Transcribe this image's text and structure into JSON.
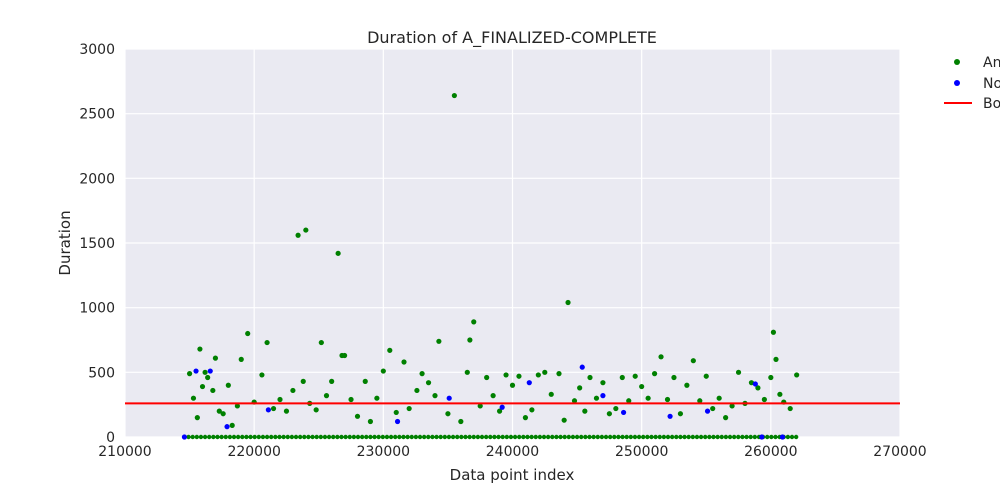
{
  "chart_data": {
    "type": "scatter",
    "title": "Duration of A_FINALIZED-COMPLETE",
    "xlabel": "Data point index",
    "ylabel": "Duration",
    "xlim": [
      210000,
      270000
    ],
    "ylim": [
      0,
      3000
    ],
    "xticks": [
      "210000",
      "220000",
      "230000",
      "240000",
      "250000",
      "260000",
      "270000"
    ],
    "yticks": [
      "0",
      "500",
      "1000",
      "1500",
      "2000",
      "2500",
      "3000"
    ],
    "grid": true,
    "legend_position": "outside-right",
    "series": [
      {
        "name": "An",
        "color": "#008000",
        "points": [
          [
            215000,
            490
          ],
          [
            215300,
            300
          ],
          [
            215600,
            150
          ],
          [
            215800,
            680
          ],
          [
            216000,
            390
          ],
          [
            216200,
            500
          ],
          [
            216400,
            460
          ],
          [
            216800,
            360
          ],
          [
            217000,
            610
          ],
          [
            217300,
            200
          ],
          [
            217600,
            180
          ],
          [
            218000,
            400
          ],
          [
            218300,
            90
          ],
          [
            218700,
            240
          ],
          [
            219000,
            600
          ],
          [
            219500,
            800
          ],
          [
            220000,
            270
          ],
          [
            220600,
            480
          ],
          [
            221000,
            730
          ],
          [
            221500,
            220
          ],
          [
            222000,
            290
          ],
          [
            222500,
            200
          ],
          [
            223000,
            360
          ],
          [
            223400,
            1560
          ],
          [
            223800,
            430
          ],
          [
            224000,
            1600
          ],
          [
            224300,
            260
          ],
          [
            224800,
            210
          ],
          [
            225200,
            730
          ],
          [
            225600,
            320
          ],
          [
            226000,
            430
          ],
          [
            226500,
            1420
          ],
          [
            226800,
            630
          ],
          [
            227000,
            630
          ],
          [
            227500,
            290
          ],
          [
            228000,
            160
          ],
          [
            228600,
            430
          ],
          [
            229000,
            120
          ],
          [
            229500,
            300
          ],
          [
            230000,
            510
          ],
          [
            230500,
            670
          ],
          [
            231000,
            190
          ],
          [
            231600,
            580
          ],
          [
            232000,
            220
          ],
          [
            232600,
            360
          ],
          [
            233000,
            490
          ],
          [
            233500,
            420
          ],
          [
            234000,
            320
          ],
          [
            234300,
            740
          ],
          [
            235000,
            180
          ],
          [
            235500,
            2640
          ],
          [
            236000,
            120
          ],
          [
            236500,
            500
          ],
          [
            236700,
            750
          ],
          [
            237000,
            890
          ],
          [
            237500,
            240
          ],
          [
            238000,
            460
          ],
          [
            238500,
            320
          ],
          [
            239000,
            200
          ],
          [
            239500,
            480
          ],
          [
            240000,
            400
          ],
          [
            240500,
            470
          ],
          [
            241000,
            150
          ],
          [
            241500,
            210
          ],
          [
            242000,
            480
          ],
          [
            242500,
            500
          ],
          [
            243000,
            330
          ],
          [
            243600,
            490
          ],
          [
            244000,
            130
          ],
          [
            244300,
            1040
          ],
          [
            244800,
            280
          ],
          [
            245200,
            380
          ],
          [
            245600,
            200
          ],
          [
            246000,
            460
          ],
          [
            246500,
            300
          ],
          [
            247000,
            420
          ],
          [
            247500,
            180
          ],
          [
            248000,
            220
          ],
          [
            248500,
            460
          ],
          [
            249000,
            280
          ],
          [
            249500,
            470
          ],
          [
            250000,
            390
          ],
          [
            250500,
            300
          ],
          [
            251000,
            490
          ],
          [
            251500,
            620
          ],
          [
            252000,
            290
          ],
          [
            252500,
            460
          ],
          [
            253000,
            180
          ],
          [
            253500,
            400
          ],
          [
            254000,
            590
          ],
          [
            254500,
            280
          ],
          [
            255000,
            470
          ],
          [
            255500,
            220
          ],
          [
            256000,
            300
          ],
          [
            256500,
            150
          ],
          [
            257000,
            240
          ],
          [
            257500,
            500
          ],
          [
            258000,
            260
          ],
          [
            258500,
            420
          ],
          [
            259000,
            380
          ],
          [
            259500,
            290
          ],
          [
            260000,
            460
          ],
          [
            260200,
            810
          ],
          [
            260400,
            600
          ],
          [
            260700,
            330
          ],
          [
            261000,
            270
          ],
          [
            261500,
            220
          ],
          [
            262000,
            480
          ]
        ]
      },
      {
        "name": "No",
        "color": "#0000ff",
        "points": [
          [
            214600,
            0
          ],
          [
            215500,
            510
          ],
          [
            216600,
            510
          ],
          [
            217900,
            80
          ],
          [
            221100,
            210
          ],
          [
            231100,
            120
          ],
          [
            235100,
            300
          ],
          [
            239200,
            230
          ],
          [
            241300,
            420
          ],
          [
            245400,
            540
          ],
          [
            247000,
            320
          ],
          [
            248600,
            190
          ],
          [
            252200,
            160
          ],
          [
            255100,
            200
          ],
          [
            258800,
            410
          ],
          [
            259300,
            0
          ],
          [
            260900,
            0
          ]
        ]
      },
      {
        "name": "Bo",
        "type": "line",
        "color": "#ff0000",
        "y": 260
      }
    ]
  }
}
